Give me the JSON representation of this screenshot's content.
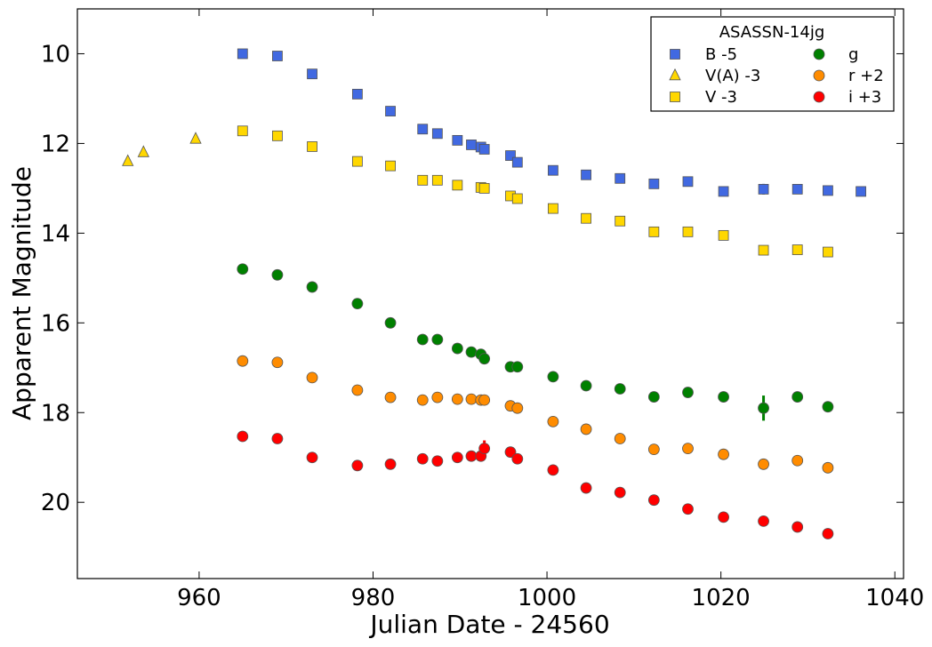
{
  "chart_data": {
    "type": "scatter",
    "title": "",
    "xlabel": "Julian Date - 24560",
    "ylabel": "Apparent Magnitude",
    "xlim": [
      946,
      1041
    ],
    "ylim": [
      21.7,
      9.0
    ],
    "y_inverted": true,
    "xticks": [
      960,
      980,
      1000,
      1020,
      1040
    ],
    "yticks": [
      10,
      12,
      14,
      16,
      18,
      20
    ],
    "grid": false,
    "legend": {
      "title": "ASASSN-14jg",
      "position": "top-right",
      "columns": 2
    },
    "series": [
      {
        "name": "B -5",
        "marker": "square",
        "color": "#4169E1",
        "x": [
          965,
          969,
          973,
          978.2,
          982,
          985.7,
          987.4,
          989.7,
          991.3,
          992.4,
          992.8,
          995.8,
          996.6,
          1000.7,
          1004.5,
          1008.4,
          1012.3,
          1016.2,
          1020.3,
          1024.9,
          1028.8,
          1032.3,
          1036.1
        ],
        "y": [
          10.0,
          10.05,
          10.45,
          10.9,
          11.28,
          11.68,
          11.78,
          11.93,
          12.03,
          12.08,
          12.13,
          12.27,
          12.42,
          12.6,
          12.7,
          12.78,
          12.9,
          12.85,
          13.07,
          13.02,
          13.02,
          13.05,
          13.07
        ],
        "yerr": [
          0,
          0,
          0,
          0,
          0,
          0,
          0,
          0,
          0,
          0,
          0,
          0,
          0,
          0,
          0,
          0,
          0,
          0,
          0,
          0.12,
          0,
          0,
          0
        ]
      },
      {
        "name": "V(A) -3",
        "marker": "triangle",
        "color": "#FFD700",
        "x": [
          951.8,
          953.6,
          959.6
        ],
        "y": [
          12.4,
          12.2,
          11.9
        ],
        "yerr": [
          0,
          0,
          0
        ]
      },
      {
        "name": "V -3",
        "marker": "square",
        "color": "#FFD700",
        "x": [
          965,
          969,
          973,
          978.2,
          982,
          985.7,
          987.4,
          989.7,
          992.4,
          992.8,
          995.8,
          996.6,
          1000.7,
          1004.5,
          1008.4,
          1012.3,
          1016.2,
          1020.3,
          1024.9,
          1028.8,
          1032.3
        ],
        "y": [
          11.72,
          11.83,
          12.07,
          12.4,
          12.5,
          12.82,
          12.82,
          12.93,
          12.98,
          13.0,
          13.17,
          13.23,
          13.45,
          13.67,
          13.73,
          13.97,
          13.97,
          14.05,
          14.38,
          14.37,
          14.42
        ],
        "yerr": [
          0,
          0,
          0,
          0,
          0,
          0,
          0,
          0,
          0,
          0,
          0,
          0,
          0,
          0,
          0,
          0,
          0,
          0,
          0,
          0,
          0
        ]
      },
      {
        "name": "g",
        "marker": "circle",
        "color": "#008000",
        "x": [
          965,
          969,
          973,
          978.2,
          982,
          985.7,
          987.4,
          989.7,
          991.3,
          992.4,
          992.8,
          995.8,
          996.6,
          1000.7,
          1004.5,
          1008.4,
          1012.3,
          1016.2,
          1020.3,
          1024.9,
          1028.8,
          1032.3
        ],
        "y": [
          14.8,
          14.93,
          15.2,
          15.57,
          16.0,
          16.37,
          16.37,
          16.57,
          16.65,
          16.7,
          16.8,
          16.98,
          16.98,
          17.2,
          17.4,
          17.47,
          17.65,
          17.55,
          17.65,
          17.9,
          17.65,
          17.87
        ],
        "yerr": [
          0,
          0,
          0,
          0,
          0,
          0,
          0,
          0,
          0,
          0,
          0,
          0,
          0,
          0,
          0,
          0,
          0,
          0,
          0,
          0.28,
          0,
          0
        ]
      },
      {
        "name": "r +2",
        "marker": "circle",
        "color": "#FF8C00",
        "x": [
          965,
          969,
          973,
          978.2,
          982,
          985.7,
          987.4,
          989.7,
          991.3,
          992.4,
          992.8,
          995.8,
          996.6,
          1000.7,
          1004.5,
          1008.4,
          1012.3,
          1016.2,
          1020.3,
          1024.9,
          1028.8,
          1032.3
        ],
        "y": [
          16.85,
          16.88,
          17.22,
          17.5,
          17.66,
          17.72,
          17.66,
          17.7,
          17.7,
          17.72,
          17.72,
          17.85,
          17.9,
          18.2,
          18.37,
          18.58,
          18.82,
          18.8,
          18.93,
          19.15,
          19.07,
          19.23
        ],
        "yerr": [
          0,
          0,
          0,
          0,
          0,
          0,
          0,
          0,
          0,
          0,
          0,
          0,
          0,
          0,
          0,
          0,
          0,
          0,
          0,
          0,
          0,
          0
        ]
      },
      {
        "name": "i +3",
        "marker": "circle",
        "color": "#FF0000",
        "x": [
          965,
          969,
          973,
          978.2,
          982,
          985.7,
          987.4,
          989.7,
          991.3,
          992.4,
          992.8,
          995.8,
          996.6,
          1000.7,
          1004.5,
          1008.4,
          1012.3,
          1016.2,
          1020.3,
          1024.9,
          1028.8,
          1032.3
        ],
        "y": [
          18.53,
          18.58,
          19.0,
          19.18,
          19.15,
          19.03,
          19.08,
          19.0,
          18.97,
          18.97,
          18.8,
          18.88,
          19.03,
          19.28,
          19.68,
          19.78,
          19.95,
          20.15,
          20.33,
          20.42,
          20.55,
          20.7
        ],
        "yerr": [
          0,
          0,
          0,
          0,
          0,
          0,
          0,
          0,
          0,
          0,
          0.18,
          0,
          0,
          0,
          0,
          0,
          0,
          0,
          0,
          0,
          0,
          0
        ]
      }
    ]
  }
}
